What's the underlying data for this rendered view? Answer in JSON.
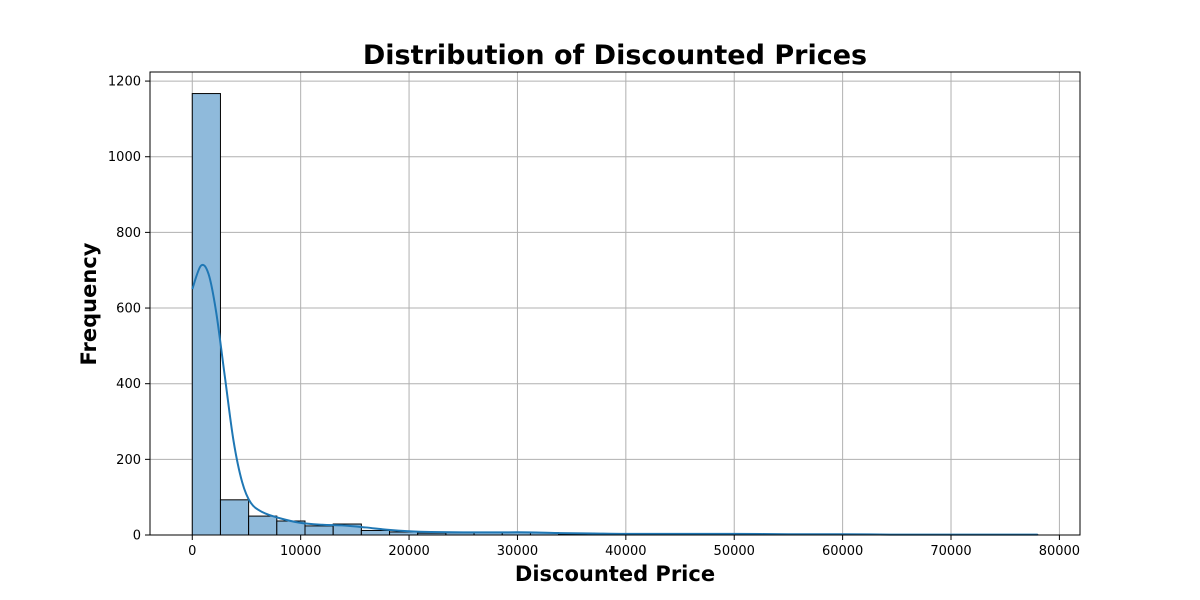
{
  "chart_data": {
    "type": "bar",
    "title": "Distribution of Discounted Prices",
    "xlabel": "Discounted Price",
    "ylabel": "Frequency",
    "xlim": [
      -3900,
      81900
    ],
    "ylim": [
      0,
      1224
    ],
    "grid": true,
    "bar_color": "#8fbadb",
    "bar_edge_color": "#000000",
    "kde_color": "#1f77b4",
    "xticks": [
      0,
      10000,
      20000,
      30000,
      40000,
      50000,
      60000,
      70000,
      80000
    ],
    "yticks": [
      0,
      200,
      400,
      600,
      800,
      1000,
      1200
    ],
    "bins": [
      {
        "x0": 0,
        "x1": 2600,
        "count": 1167
      },
      {
        "x0": 2600,
        "x1": 5200,
        "count": 93
      },
      {
        "x0": 5200,
        "x1": 7800,
        "count": 50
      },
      {
        "x0": 7800,
        "x1": 10400,
        "count": 37
      },
      {
        "x0": 10400,
        "x1": 13000,
        "count": 24
      },
      {
        "x0": 13000,
        "x1": 15600,
        "count": 29
      },
      {
        "x0": 15600,
        "x1": 18200,
        "count": 12
      },
      {
        "x0": 18200,
        "x1": 20800,
        "count": 8
      },
      {
        "x0": 20800,
        "x1": 23400,
        "count": 5
      },
      {
        "x0": 23400,
        "x1": 26000,
        "count": 6
      },
      {
        "x0": 26000,
        "x1": 28600,
        "count": 7
      },
      {
        "x0": 28600,
        "x1": 31200,
        "count": 7
      },
      {
        "x0": 31200,
        "x1": 33800,
        "count": 6
      },
      {
        "x0": 33800,
        "x1": 36400,
        "count": 2
      },
      {
        "x0": 36400,
        "x1": 39000,
        "count": 1
      },
      {
        "x0": 39000,
        "x1": 41600,
        "count": 1
      },
      {
        "x0": 41600,
        "x1": 44200,
        "count": 2
      },
      {
        "x0": 44200,
        "x1": 46800,
        "count": 1
      },
      {
        "x0": 46800,
        "x1": 49400,
        "count": 2
      },
      {
        "x0": 49400,
        "x1": 52000,
        "count": 1
      },
      {
        "x0": 52000,
        "x1": 54600,
        "count": 0
      },
      {
        "x0": 54600,
        "x1": 57200,
        "count": 1
      },
      {
        "x0": 57200,
        "x1": 59800,
        "count": 0
      },
      {
        "x0": 59800,
        "x1": 62400,
        "count": 1
      },
      {
        "x0": 62400,
        "x1": 65000,
        "count": 0
      },
      {
        "x0": 65000,
        "x1": 67600,
        "count": 0
      },
      {
        "x0": 67600,
        "x1": 70200,
        "count": 0
      },
      {
        "x0": 70200,
        "x1": 72800,
        "count": 0
      },
      {
        "x0": 72800,
        "x1": 75400,
        "count": 0
      },
      {
        "x0": 75400,
        "x1": 78000,
        "count": 1
      }
    ],
    "kde": {
      "x": [
        0,
        800,
        1500,
        2200,
        3000,
        3800,
        4600,
        5400,
        6500,
        8000,
        10000,
        12000,
        14000,
        16000,
        18000,
        20000,
        22000,
        25000,
        28000,
        31000,
        34000,
        37000,
        40000,
        45000,
        50000,
        55000,
        60000,
        65000,
        70000,
        75000,
        78000
      ],
      "y": [
        650,
        712,
        690,
        590,
        420,
        250,
        140,
        85,
        60,
        45,
        32,
        27,
        25,
        20,
        14,
        10,
        8,
        7,
        7,
        7,
        5,
        4,
        3,
        3,
        3,
        2,
        2,
        1,
        1,
        1,
        1
      ]
    }
  }
}
